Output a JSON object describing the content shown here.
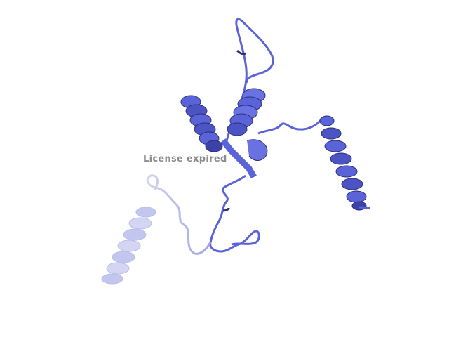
{
  "viewer": {
    "watermark_text": "License expired",
    "background_color": "#ffffff",
    "ribbon_color": "#5b63d8",
    "ribbon_dark": "#2a2f7a",
    "ribbon_faded": "#c9cbee"
  }
}
